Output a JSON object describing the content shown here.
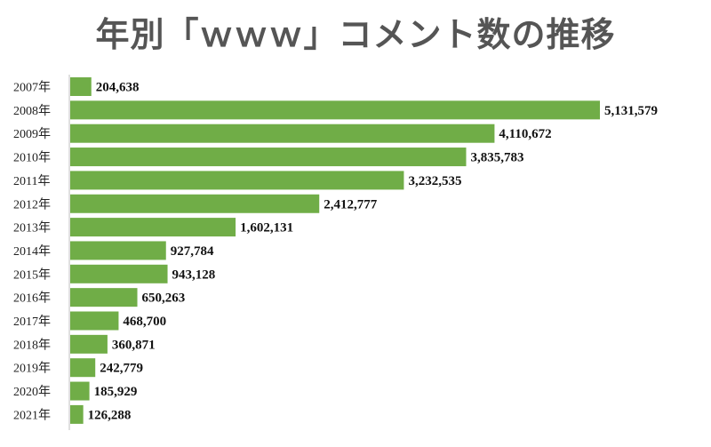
{
  "chart_data": {
    "type": "bar",
    "orientation": "horizontal",
    "title": "年別「ｗｗｗ」コメント数の推移",
    "categories": [
      "2007年",
      "2008年",
      "2009年",
      "2010年",
      "2011年",
      "2012年",
      "2013年",
      "2014年",
      "2015年",
      "2016年",
      "2017年",
      "2018年",
      "2019年",
      "2020年",
      "2021年"
    ],
    "values": [
      204638,
      5131579,
      4110672,
      3835783,
      3232535,
      2412777,
      1602131,
      927784,
      943128,
      650263,
      468700,
      360871,
      242779,
      185929,
      126288
    ],
    "value_labels": [
      "204,638",
      "5,131,579",
      "4,110,672",
      "3,835,783",
      "3,232,535",
      "2,412,777",
      "1,602,131",
      "927,784",
      "943,128",
      "650,263",
      "468,700",
      "360,871",
      "242,779",
      "185,929",
      "126,288"
    ],
    "bar_color": "#70ad47",
    "xlim": [
      0,
      5131579
    ],
    "grid": false,
    "legend": "none"
  }
}
